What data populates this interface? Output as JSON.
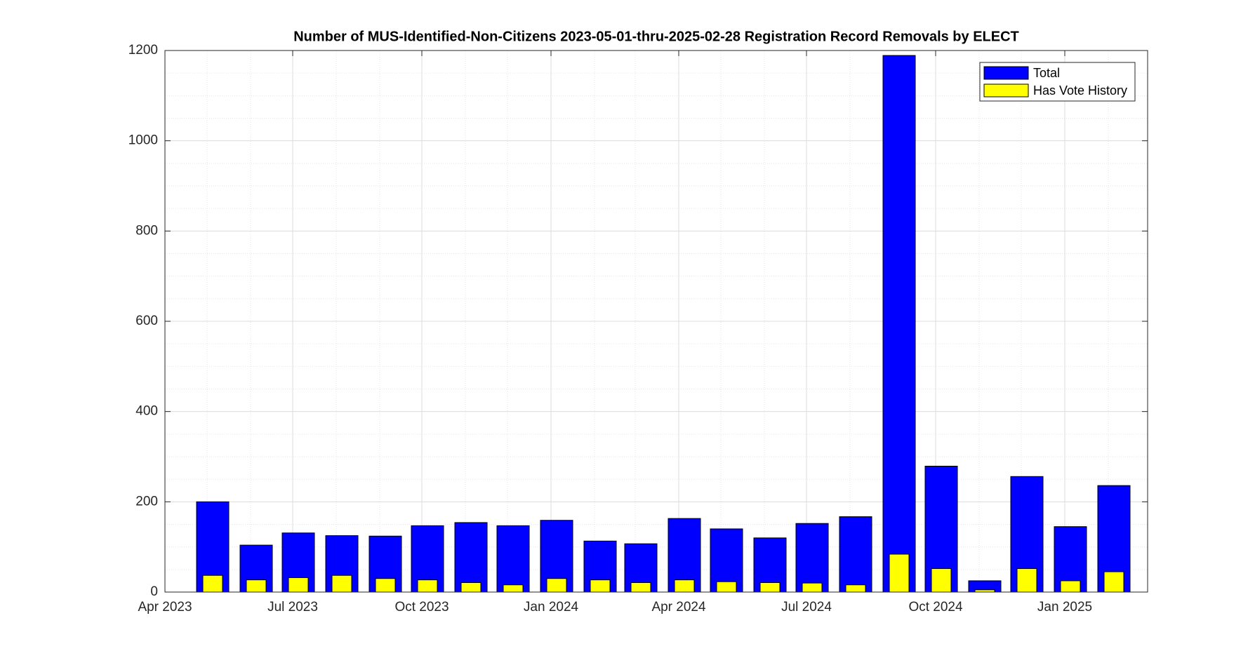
{
  "chart_data": {
    "type": "bar",
    "title": "Number of MUS-Identified-Non-Citizens 2023-05-01-thru-2025-02-28 Registration Record Removals by ELECT",
    "x": [
      "2023-05",
      "2023-06",
      "2023-07",
      "2023-08",
      "2023-09",
      "2023-10",
      "2023-11",
      "2023-12",
      "2024-01",
      "2024-02",
      "2024-03",
      "2024-04",
      "2024-05",
      "2024-06",
      "2024-07",
      "2024-08",
      "2024-09",
      "2024-10",
      "2024-11",
      "2024-12",
      "2025-01",
      "2025-02"
    ],
    "series": [
      {
        "name": "Total",
        "color": "#0000ff",
        "values": [
          200,
          104,
          131,
          125,
          124,
          147,
          154,
          147,
          159,
          113,
          107,
          163,
          140,
          120,
          152,
          167,
          1189,
          279,
          25,
          256,
          145,
          236
        ]
      },
      {
        "name": "Has Vote History",
        "color": "#ffff00",
        "values": [
          37,
          27,
          32,
          37,
          30,
          27,
          21,
          16,
          30,
          27,
          21,
          27,
          23,
          21,
          20,
          16,
          84,
          52,
          5,
          52,
          25,
          45
        ]
      }
    ],
    "xlim": [
      "2023-04",
      "2025-03"
    ],
    "xticks": [
      {
        "value": "2023-04",
        "label": "Apr 2023"
      },
      {
        "value": "2023-07",
        "label": "Jul 2023"
      },
      {
        "value": "2023-10",
        "label": "Oct 2023"
      },
      {
        "value": "2024-01",
        "label": "Jan 2024"
      },
      {
        "value": "2024-04",
        "label": "Apr 2024"
      },
      {
        "value": "2024-07",
        "label": "Jul 2024"
      },
      {
        "value": "2024-10",
        "label": "Oct 2024"
      },
      {
        "value": "2025-01",
        "label": "Jan 2025"
      }
    ],
    "ylim": [
      0,
      1200
    ],
    "yticks": [
      0,
      200,
      400,
      600,
      800,
      1000,
      1200
    ],
    "y_minor_ticks": [
      50,
      100,
      150,
      250,
      300,
      350,
      450,
      500,
      550,
      650,
      700,
      750,
      850,
      900,
      950,
      1050,
      1100,
      1150
    ],
    "grid": true,
    "minor_grid": true,
    "legend": "top-right"
  }
}
